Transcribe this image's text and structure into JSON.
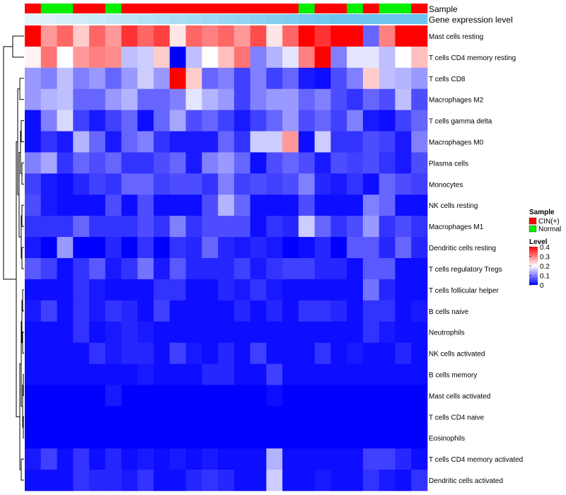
{
  "chart_data": {
    "type": "heatmap",
    "title": "",
    "annotation_tracks": {
      "sample": {
        "label": "Sample",
        "values": [
          "CIN(+)",
          "Normal",
          "Normal",
          "CIN(+)",
          "CIN(+)",
          "Normal",
          "CIN(+)",
          "CIN(+)",
          "CIN(+)",
          "CIN(+)",
          "CIN(+)",
          "CIN(+)",
          "CIN(+)",
          "CIN(+)",
          "CIN(+)",
          "CIN(+)",
          "CIN(+)",
          "Normal",
          "CIN(+)",
          "CIN(+)",
          "Normal",
          "CIN(+)",
          "Normal",
          "Normal",
          "CIN(+)"
        ]
      },
      "expression": {
        "label": "Gene expression level",
        "values": [
          0.05,
          0.1,
          0.15,
          0.2,
          0.25,
          0.3,
          0.35,
          0.4,
          0.45,
          0.5,
          0.55,
          0.6,
          0.65,
          0.7,
          0.75,
          0.8,
          0.85,
          0.9,
          0.95,
          1.0,
          1.0,
          1.0,
          1.0,
          1.0,
          1.0
        ]
      }
    },
    "rows": [
      "Mast cells resting",
      "T cells CD4 memory resting",
      "T cells CD8",
      "Macrophages M2",
      "T cells gamma delta",
      "Macrophages M0",
      "Plasma cells",
      "Monocytes",
      "NK cells resting",
      "Macrophages M1",
      "Dendritic cells resting",
      "T cells regulatory  Tregs",
      "T cells follicular helper",
      "B cells naive",
      "Neutrophils",
      "NK cells activated",
      "B cells memory",
      "Mast cells activated",
      "T cells CD4 naive",
      "Eosinophils",
      "T cells CD4 memory activated",
      "Dendritic cells activated"
    ],
    "n_columns": 25,
    "values": [
      [
        0.4,
        0.28,
        0.32,
        0.24,
        0.32,
        0.28,
        0.36,
        0.32,
        0.35,
        0.22,
        0.32,
        0.3,
        0.32,
        0.28,
        0.34,
        0.22,
        0.32,
        0.4,
        0.36,
        0.4,
        0.4,
        0.08,
        0.3,
        0.4,
        0.4
      ],
      [
        0.21,
        0.31,
        0.2,
        0.28,
        0.3,
        0.29,
        0.15,
        0.16,
        0.24,
        0.0,
        0.15,
        0.2,
        0.25,
        0.31,
        0.1,
        0.14,
        0.18,
        0.3,
        0.4,
        0.1,
        0.18,
        0.18,
        0.15,
        0.2,
        0.25
      ],
      [
        0.12,
        0.1,
        0.15,
        0.1,
        0.12,
        0.08,
        0.12,
        0.16,
        0.12,
        0.4,
        0.24,
        0.08,
        0.1,
        0.05,
        0.1,
        0.05,
        0.08,
        0.02,
        0.01,
        0.06,
        0.1,
        0.24,
        0.15,
        0.14,
        0.12
      ],
      [
        0.12,
        0.14,
        0.15,
        0.08,
        0.08,
        0.12,
        0.14,
        0.08,
        0.08,
        0.1,
        0.18,
        0.14,
        0.12,
        0.05,
        0.1,
        0.12,
        0.12,
        0.08,
        0.1,
        0.06,
        0.04,
        0.08,
        0.06,
        0.15,
        0.06
      ],
      [
        0.01,
        0.1,
        0.17,
        0.05,
        0.02,
        0.05,
        0.08,
        0.01,
        0.08,
        0.13,
        0.06,
        0.08,
        0.05,
        0.02,
        0.05,
        0.08,
        0.12,
        0.06,
        0.08,
        0.05,
        0.1,
        0.02,
        0.01,
        0.05,
        0.08
      ],
      [
        0.01,
        0.04,
        0.02,
        0.14,
        0.08,
        0.02,
        0.08,
        0.1,
        0.04,
        0.02,
        0.02,
        0.02,
        0.08,
        0.04,
        0.16,
        0.16,
        0.28,
        0.01,
        0.16,
        0.04,
        0.04,
        0.06,
        0.05,
        0.02,
        0.1
      ],
      [
        0.1,
        0.13,
        0.04,
        0.08,
        0.06,
        0.08,
        0.04,
        0.04,
        0.06,
        0.08,
        0.02,
        0.1,
        0.12,
        0.08,
        0.01,
        0.06,
        0.08,
        0.06,
        0.02,
        0.06,
        0.05,
        0.06,
        0.04,
        0.02,
        0.06
      ],
      [
        0.05,
        0.02,
        0.01,
        0.03,
        0.05,
        0.04,
        0.08,
        0.08,
        0.05,
        0.06,
        0.06,
        0.04,
        0.1,
        0.05,
        0.06,
        0.05,
        0.06,
        0.1,
        0.03,
        0.02,
        0.04,
        0.01,
        0.08,
        0.06,
        0.05
      ],
      [
        0.06,
        0.02,
        0.01,
        0.01,
        0.01,
        0.06,
        0.01,
        0.06,
        0.01,
        0.01,
        0.01,
        0.06,
        0.14,
        0.08,
        0.01,
        0.01,
        0.01,
        0.06,
        0.01,
        0.01,
        0.01,
        0.1,
        0.08,
        0.01,
        0.01
      ],
      [
        0.04,
        0.04,
        0.04,
        0.08,
        0.04,
        0.04,
        0.04,
        0.06,
        0.04,
        0.1,
        0.04,
        0.06,
        0.06,
        0.06,
        0.01,
        0.04,
        0.03,
        0.16,
        0.08,
        0.04,
        0.06,
        0.12,
        0.04,
        0.06,
        0.04
      ],
      [
        0.02,
        0.0,
        0.12,
        0.0,
        0.0,
        0.03,
        0.0,
        0.04,
        0.0,
        0.04,
        0.03,
        0.08,
        0.03,
        0.02,
        0.03,
        0.02,
        0.0,
        0.01,
        0.03,
        0.0,
        0.07,
        0.07,
        0.03,
        0.08,
        0.03
      ],
      [
        0.07,
        0.05,
        0.01,
        0.04,
        0.07,
        0.02,
        0.04,
        0.09,
        0.02,
        0.07,
        0.03,
        0.03,
        0.03,
        0.05,
        0.02,
        0.04,
        0.05,
        0.05,
        0.03,
        0.03,
        0.01,
        0.07,
        0.07,
        0.01,
        0.01
      ],
      [
        0.01,
        0.01,
        0.01,
        0.04,
        0.02,
        0.01,
        0.01,
        0.01,
        0.04,
        0.04,
        0.01,
        0.01,
        0.03,
        0.02,
        0.04,
        0.02,
        0.01,
        0.01,
        0.01,
        0.01,
        0.01,
        0.09,
        0.03,
        0.01,
        0.01
      ],
      [
        0.02,
        0.05,
        0.01,
        0.04,
        0.02,
        0.04,
        0.03,
        0.01,
        0.05,
        0.01,
        0.01,
        0.01,
        0.01,
        0.03,
        0.01,
        0.03,
        0.01,
        0.04,
        0.04,
        0.03,
        0.01,
        0.04,
        0.04,
        0.01,
        0.02
      ],
      [
        0.01,
        0.01,
        0.01,
        0.04,
        0.01,
        0.02,
        0.03,
        0.02,
        0.01,
        0.01,
        0.01,
        0.01,
        0.01,
        0.01,
        0.01,
        0.01,
        0.01,
        0.01,
        0.01,
        0.01,
        0.01,
        0.04,
        0.02,
        0.01,
        0.01
      ],
      [
        0.01,
        0.01,
        0.01,
        0.01,
        0.04,
        0.02,
        0.03,
        0.03,
        0.01,
        0.05,
        0.02,
        0.01,
        0.03,
        0.01,
        0.05,
        0.01,
        0.01,
        0.01,
        0.04,
        0.01,
        0.02,
        0.01,
        0.01,
        0.03,
        0.01
      ],
      [
        0.01,
        0.01,
        0.01,
        0.01,
        0.01,
        0.01,
        0.01,
        0.02,
        0.01,
        0.01,
        0.01,
        0.03,
        0.03,
        0.01,
        0.01,
        0.05,
        0.01,
        0.01,
        0.01,
        0.01,
        0.01,
        0.01,
        0.01,
        0.01,
        0.01
      ],
      [
        0.0,
        0.0,
        0.0,
        0.0,
        0.0,
        0.02,
        0.0,
        0.0,
        0.0,
        0.0,
        0.0,
        0.0,
        0.0,
        0.0,
        0.0,
        0.01,
        0.0,
        0.0,
        0.0,
        0.0,
        0.0,
        0.0,
        0.0,
        0.0,
        0.0
      ],
      [
        0.0,
        0.0,
        0.0,
        0.0,
        0.0,
        0.0,
        0.0,
        0.0,
        0.0,
        0.0,
        0.0,
        0.0,
        0.0,
        0.0,
        0.0,
        0.0,
        0.0,
        0.0,
        0.0,
        0.0,
        0.0,
        0.0,
        0.0,
        0.0,
        0.0
      ],
      [
        0.0,
        0.0,
        0.0,
        0.0,
        0.0,
        0.0,
        0.0,
        0.0,
        0.0,
        0.0,
        0.0,
        0.0,
        0.0,
        0.0,
        0.0,
        0.0,
        0.0,
        0.0,
        0.0,
        0.0,
        0.0,
        0.0,
        0.0,
        0.0,
        0.0
      ],
      [
        0.02,
        0.05,
        0.01,
        0.04,
        0.01,
        0.03,
        0.01,
        0.02,
        0.01,
        0.02,
        0.01,
        0.02,
        0.01,
        0.01,
        0.01,
        0.14,
        0.01,
        0.01,
        0.01,
        0.01,
        0.01,
        0.05,
        0.05,
        0.03,
        0.01
      ],
      [
        0.01,
        0.01,
        0.01,
        0.04,
        0.03,
        0.03,
        0.02,
        0.04,
        0.01,
        0.01,
        0.03,
        0.04,
        0.03,
        0.01,
        0.01,
        0.16,
        0.01,
        0.01,
        0.02,
        0.01,
        0.01,
        0.04,
        0.02,
        0.01,
        0.04
      ]
    ],
    "color_scale": {
      "low": "#0000ff",
      "mid": "#ffffff",
      "high": "#ff0000",
      "min": 0,
      "max": 0.4
    },
    "legend": {
      "sample": {
        "title": "Sample",
        "entries": [
          {
            "label": "CIN(+)",
            "color": "#ff0000"
          },
          {
            "label": "Normal",
            "color": "#00ee00"
          }
        ]
      },
      "level": {
        "title": "Level",
        "ticks": [
          0.4,
          0.3,
          0.2,
          0.1,
          0
        ]
      }
    },
    "expression_colors": {
      "light": "#e8f6fb",
      "dark": "#6cc4ee"
    },
    "dendrogram": "left",
    "grid": false
  }
}
